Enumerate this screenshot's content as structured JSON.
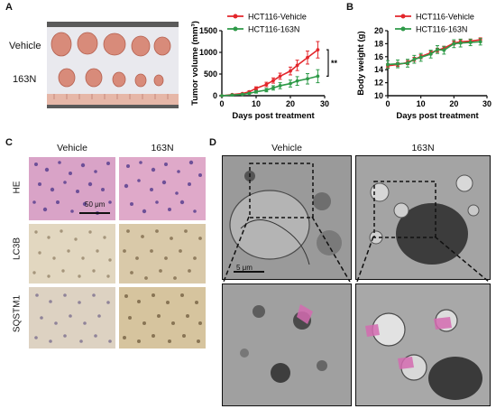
{
  "panels": {
    "a": "A",
    "b": "B",
    "c": "C",
    "d": "D"
  },
  "photo": {
    "row_vehicle": "Vehicle",
    "row_163n": "163N"
  },
  "chart_data": [
    {
      "type": "line",
      "id": "tumor-volume",
      "title": "",
      "xlabel": "Days post treatment",
      "ylabel": "Tumor volume (mm³)",
      "xlim": [
        0,
        30
      ],
      "ylim": [
        0,
        1500
      ],
      "xticks": [
        0,
        10,
        20,
        30
      ],
      "yticks": [
        0,
        500,
        1000,
        1500
      ],
      "legend_position": "top",
      "annotation": "**",
      "series": [
        {
          "name": "HCT116-Vehicle",
          "color": "#e3262b",
          "x": [
            0,
            3,
            6,
            8,
            10,
            13,
            15,
            17,
            20,
            22,
            25,
            28
          ],
          "y": [
            0,
            25,
            50,
            90,
            170,
            260,
            350,
            450,
            570,
            700,
            880,
            1060
          ],
          "err": [
            0,
            8,
            12,
            20,
            35,
            50,
            60,
            70,
            90,
            120,
            150,
            190
          ]
        },
        {
          "name": "HCT116-163N",
          "color": "#2e9a48",
          "x": [
            0,
            3,
            6,
            8,
            10,
            13,
            15,
            17,
            20,
            22,
            25,
            28
          ],
          "y": [
            0,
            15,
            30,
            55,
            90,
            130,
            180,
            230,
            280,
            340,
            390,
            450
          ],
          "err": [
            0,
            6,
            10,
            18,
            30,
            40,
            50,
            70,
            80,
            100,
            120,
            150
          ]
        }
      ]
    },
    {
      "type": "line",
      "id": "body-weight",
      "title": "",
      "xlabel": "Days post treatment",
      "ylabel": "Body weight (g)",
      "xlim": [
        0,
        30
      ],
      "ylim": [
        10,
        20
      ],
      "xticks": [
        0,
        10,
        20,
        30
      ],
      "yticks": [
        10,
        12,
        14,
        16,
        18,
        20
      ],
      "legend_position": "top",
      "series": [
        {
          "name": "HCT116-Vehicle",
          "color": "#e3262b",
          "x": [
            0,
            3,
            6,
            8,
            10,
            13,
            15,
            17,
            20,
            22,
            25,
            28
          ],
          "y": [
            14.6,
            14.8,
            15.1,
            15.6,
            16.0,
            16.6,
            17.0,
            17.3,
            18.1,
            18.3,
            18.4,
            18.6
          ],
          "err": [
            0.3,
            0.3,
            0.3,
            0.3,
            0.3,
            0.3,
            0.3,
            0.3,
            0.3,
            0.3,
            0.3,
            0.3
          ]
        },
        {
          "name": "HCT116-163N",
          "color": "#2e9a48",
          "x": [
            0,
            3,
            6,
            8,
            10,
            13,
            15,
            17,
            20,
            22,
            25,
            28
          ],
          "y": [
            14.8,
            14.9,
            15.0,
            15.6,
            15.9,
            16.4,
            17.1,
            17.0,
            18.0,
            18.1,
            18.2,
            18.3
          ],
          "err": [
            0.6,
            0.6,
            0.6,
            0.6,
            0.6,
            0.6,
            0.6,
            0.6,
            0.6,
            0.6,
            0.5,
            0.5
          ]
        }
      ]
    }
  ],
  "histology": {
    "col_vehicle": "Vehicle",
    "col_163n": "163N",
    "row_he": "HE",
    "row_lc3b": "LC3B",
    "row_sqstm1": "SQSTM1",
    "scale_bar": "50 μm"
  },
  "em": {
    "col_vehicle": "Vehicle",
    "col_163n": "163N",
    "scale_bar": "5 μm"
  },
  "colors": {
    "he": "#c77aa8",
    "ihc": "#d8cbb2",
    "em": "#8a8a8a"
  }
}
